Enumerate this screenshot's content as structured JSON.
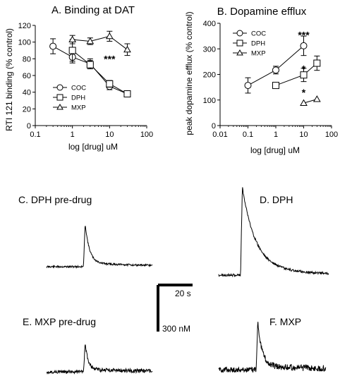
{
  "chart_data": [
    {
      "id": "A",
      "type": "line",
      "title": "A. Binding at DAT",
      "xlabel": "log [drug] uM",
      "ylabel": "RTI 121 binding (% control)",
      "xscale": "log",
      "xlim": [
        0.1,
        100
      ],
      "xticks": [
        "0.1",
        "1",
        "10",
        "100"
      ],
      "ylim": [
        0,
        120
      ],
      "yticks": [
        "0",
        "20",
        "40",
        "60",
        "80",
        "100",
        "120"
      ],
      "legend": {
        "placement": "bottom-left"
      },
      "annotations": [
        {
          "text": "***",
          "x": 10,
          "y": 80
        }
      ],
      "series": [
        {
          "name": "COC",
          "marker": "circle",
          "points": [
            {
              "x": 0.3,
              "y": 95,
              "err": 9
            },
            {
              "x": 1,
              "y": 82,
              "err": 7
            },
            {
              "x": 3,
              "y": 74,
              "err": 6
            },
            {
              "x": 10,
              "y": 47,
              "err": 4
            },
            {
              "x": 30,
              "y": 38,
              "err": 2
            }
          ]
        },
        {
          "name": "DPH",
          "marker": "square",
          "points": [
            {
              "x": 1,
              "y": 90,
              "err": 13
            },
            {
              "x": 3,
              "y": 73,
              "err": 5
            },
            {
              "x": 10,
              "y": 50,
              "err": 4
            },
            {
              "x": 30,
              "y": 38,
              "err": 2
            }
          ]
        },
        {
          "name": "MXP",
          "marker": "triangle",
          "points": [
            {
              "x": 1,
              "y": 103,
              "err": 5
            },
            {
              "x": 3,
              "y": 101,
              "err": 4
            },
            {
              "x": 10,
              "y": 107,
              "err": 6
            },
            {
              "x": 30,
              "y": 91,
              "err": 7
            }
          ]
        }
      ]
    },
    {
      "id": "B",
      "type": "line",
      "title": "B. Dopamine efflux",
      "xlabel": "log [drug] uM",
      "ylabel": "peak dopamine efflux (% control)",
      "xscale": "log",
      "xlim": [
        0.01,
        100
      ],
      "xticks": [
        "0.01",
        "0.1",
        "1",
        "10",
        "100"
      ],
      "ylim": [
        0,
        400
      ],
      "yticks": [
        "0",
        "100",
        "200",
        "300",
        "400"
      ],
      "legend": {
        "placement": "top-left"
      },
      "annotations": [
        {
          "text": "***",
          "x": 10,
          "y": 355
        },
        {
          "text": "*",
          "x": 10,
          "y": 222
        },
        {
          "text": "*",
          "x": 10,
          "y": 130
        }
      ],
      "series": [
        {
          "name": "COC",
          "marker": "circle",
          "points": [
            {
              "x": 0.1,
              "y": 157,
              "err": 30
            },
            {
              "x": 1,
              "y": 217,
              "err": 15
            },
            {
              "x": 10,
              "y": 312,
              "err": 38
            }
          ]
        },
        {
          "name": "DPH",
          "marker": "square",
          "points": [
            {
              "x": 1,
              "y": 157,
              "err": 0
            },
            {
              "x": 10,
              "y": 198,
              "err": 26
            },
            {
              "x": 30,
              "y": 244,
              "err": 28
            }
          ]
        },
        {
          "name": "MXP",
          "marker": "triangle",
          "points": [
            {
              "x": 10,
              "y": 88,
              "err": 0
            },
            {
              "x": 30,
              "y": 103,
              "err": 0
            }
          ]
        }
      ]
    }
  ],
  "traces": [
    {
      "id": "C",
      "label": "C. DPH pre-drug",
      "stim_fraction": 0.35,
      "peak_fraction": 0.85,
      "decay": 0.04,
      "baseline_noise": 0.04,
      "post_noise": 0.04
    },
    {
      "id": "D",
      "label": "D. DPH",
      "stim_fraction": 0.2,
      "peak_fraction": 1.0,
      "decay": 0.12,
      "baseline_noise": 0.03,
      "post_noise": 0.03
    },
    {
      "id": "E",
      "label": "E. MXP pre-drug",
      "stim_fraction": 0.35,
      "peak_fraction": 0.9,
      "decay": 0.03,
      "baseline_noise": 0.12,
      "post_noise": 0.14
    },
    {
      "id": "F",
      "label": "F. MXP",
      "stim_fraction": 0.35,
      "peak_fraction": 1.0,
      "decay": 0.04,
      "baseline_noise": 0.12,
      "post_noise": 0.14
    }
  ],
  "scale_bar": {
    "time_label": "20 s",
    "conc_label": "300 nM"
  }
}
